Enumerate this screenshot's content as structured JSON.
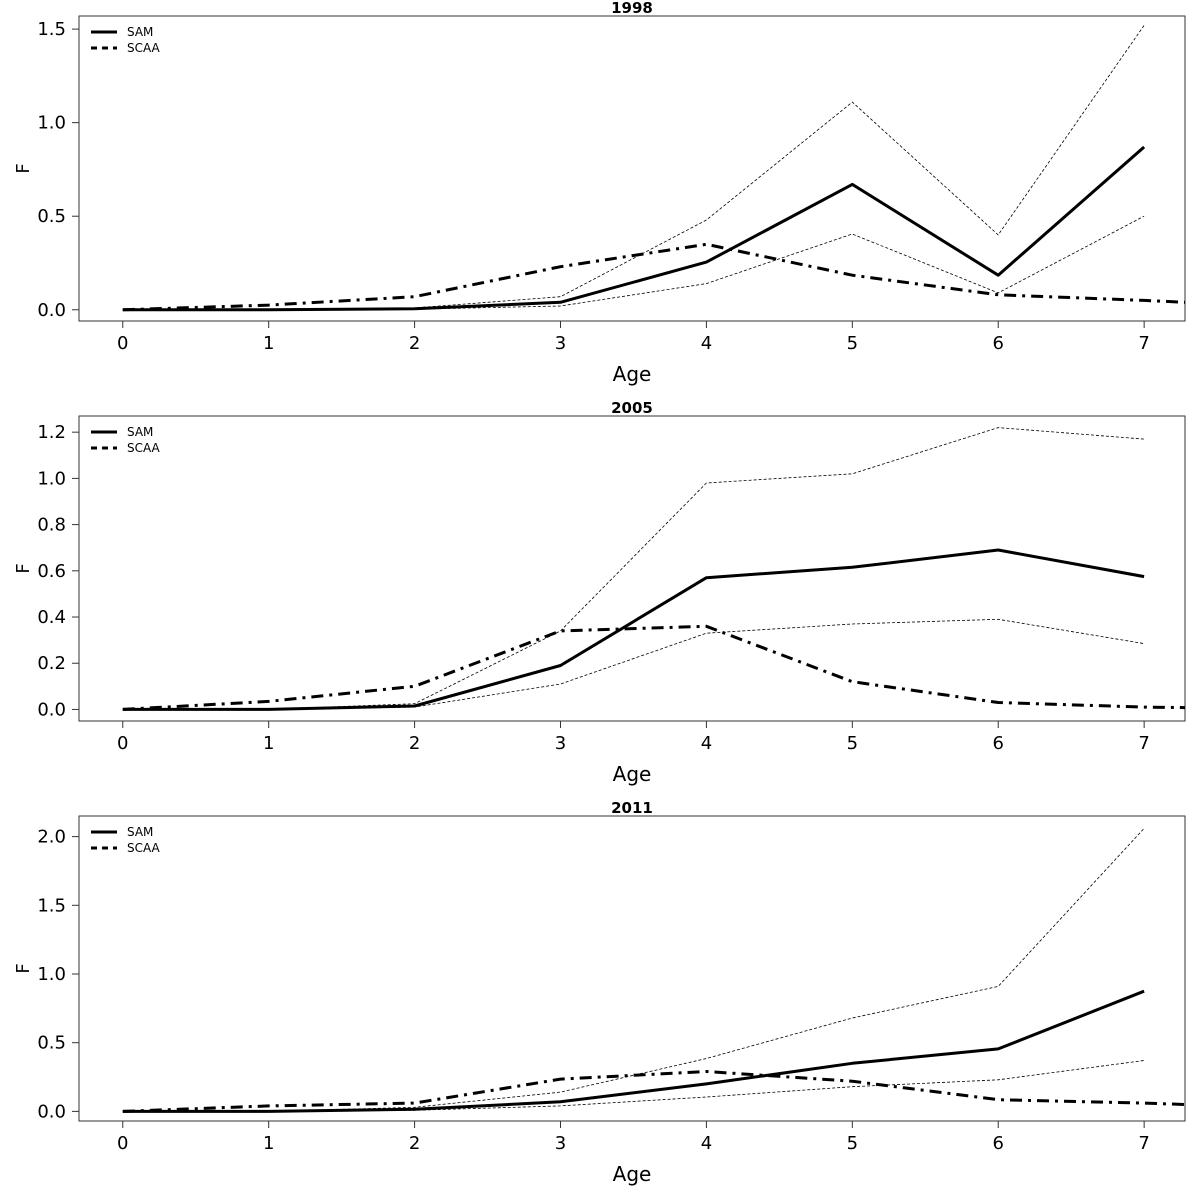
{
  "chart_data": [
    {
      "type": "line",
      "title": "1998",
      "xlabel": "Age",
      "ylabel": "F",
      "x": [
        0,
        1,
        2,
        3,
        4,
        5,
        6,
        7
      ],
      "xlim": [
        -0.3,
        7.28
      ],
      "ylim": [
        -0.06,
        1.57
      ],
      "xticks": [
        0,
        1,
        2,
        3,
        4,
        5,
        6,
        7
      ],
      "yticks": [
        0.0,
        0.5,
        1.0,
        1.5
      ],
      "ytick_labels": [
        "0.0",
        "0.5",
        "1.0",
        "1.5"
      ],
      "legend": {
        "position": "top-left",
        "entries": [
          "SAM",
          "SCAA"
        ]
      },
      "series": [
        {
          "name": "SAM",
          "style": "solid",
          "values": [
            0.0,
            0.0,
            0.005,
            0.04,
            0.255,
            0.67,
            0.185,
            0.87
          ]
        },
        {
          "style": "thin-dotted",
          "values": [
            0.0,
            0.0,
            0.01,
            0.07,
            0.48,
            1.11,
            0.4,
            1.52
          ]
        },
        {
          "style": "thin-dotted",
          "values": [
            0.0,
            0.0,
            0.003,
            0.02,
            0.14,
            0.405,
            0.09,
            0.5
          ]
        },
        {
          "name": "SCAA",
          "style": "dashdot",
          "x": [
            0,
            1,
            2,
            3,
            4,
            5,
            6,
            7,
            7.28
          ],
          "values": [
            0.0,
            0.025,
            0.07,
            0.23,
            0.35,
            0.185,
            0.08,
            0.05,
            0.04
          ]
        }
      ]
    },
    {
      "type": "line",
      "title": "2005",
      "xlabel": "Age",
      "ylabel": "F",
      "x": [
        0,
        1,
        2,
        3,
        4,
        5,
        6,
        7
      ],
      "xlim": [
        -0.3,
        7.28
      ],
      "ylim": [
        -0.05,
        1.27
      ],
      "xticks": [
        0,
        1,
        2,
        3,
        4,
        5,
        6,
        7
      ],
      "yticks": [
        0.0,
        0.2,
        0.4,
        0.6,
        0.8,
        1.0,
        1.2
      ],
      "ytick_labels": [
        "0.0",
        "0.2",
        "0.4",
        "0.6",
        "0.8",
        "1.0",
        "1.2"
      ],
      "legend": {
        "position": "top-left",
        "entries": [
          "SAM",
          "SCAA"
        ]
      },
      "series": [
        {
          "name": "SAM",
          "style": "solid",
          "values": [
            0.0,
            0.0,
            0.015,
            0.19,
            0.57,
            0.615,
            0.69,
            0.575
          ]
        },
        {
          "style": "thin-dotted",
          "values": [
            0.0,
            0.0,
            0.025,
            0.34,
            0.98,
            1.02,
            1.22,
            1.17
          ]
        },
        {
          "style": "thin-dotted",
          "values": [
            0.0,
            0.0,
            0.01,
            0.11,
            0.33,
            0.37,
            0.39,
            0.285
          ]
        },
        {
          "name": "SCAA",
          "style": "dashdot",
          "x": [
            0,
            1,
            2,
            3,
            4,
            5,
            6,
            7,
            7.28
          ],
          "values": [
            0.0,
            0.035,
            0.1,
            0.34,
            0.36,
            0.12,
            0.03,
            0.01,
            0.008
          ]
        }
      ]
    },
    {
      "type": "line",
      "title": "2011",
      "xlabel": "Age",
      "ylabel": "F",
      "x": [
        0,
        1,
        2,
        3,
        4,
        5,
        6,
        7
      ],
      "xlim": [
        -0.3,
        7.28
      ],
      "ylim": [
        -0.07,
        2.15
      ],
      "xticks": [
        0,
        1,
        2,
        3,
        4,
        5,
        6,
        7
      ],
      "yticks": [
        0.0,
        0.5,
        1.0,
        1.5,
        2.0
      ],
      "ytick_labels": [
        "0.0",
        "0.5",
        "1.0",
        "1.5",
        "2.0"
      ],
      "legend": {
        "position": "top-left",
        "entries": [
          "SAM",
          "SCAA"
        ]
      },
      "series": [
        {
          "name": "SAM",
          "style": "solid",
          "values": [
            0.0,
            0.0,
            0.015,
            0.07,
            0.2,
            0.35,
            0.455,
            0.875
          ]
        },
        {
          "style": "thin-dotted",
          "values": [
            0.0,
            0.0,
            0.03,
            0.14,
            0.385,
            0.68,
            0.91,
            2.06
          ]
        },
        {
          "style": "thin-dotted",
          "values": [
            0.0,
            0.0,
            0.008,
            0.04,
            0.105,
            0.18,
            0.23,
            0.37
          ]
        },
        {
          "name": "SCAA",
          "style": "dashdot",
          "x": [
            0,
            1,
            2,
            3,
            4,
            5,
            6,
            7,
            7.28
          ],
          "values": [
            0.0,
            0.04,
            0.06,
            0.235,
            0.29,
            0.22,
            0.085,
            0.06,
            0.05
          ]
        }
      ]
    }
  ]
}
